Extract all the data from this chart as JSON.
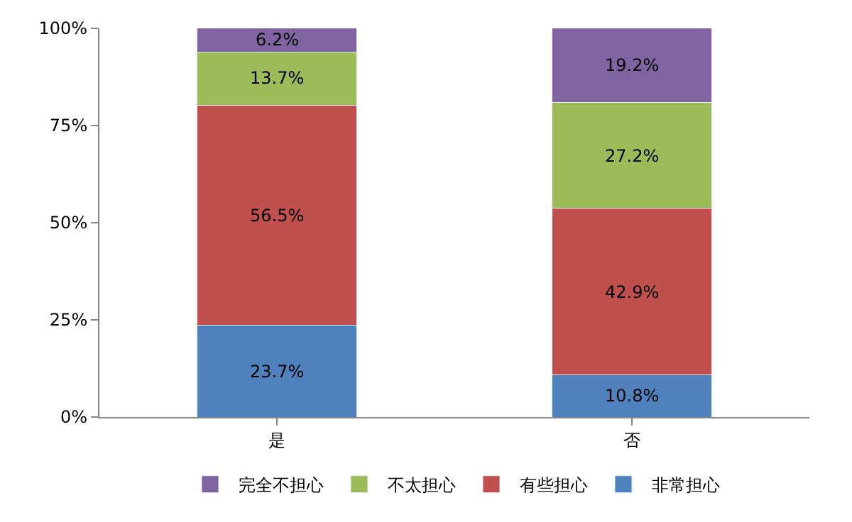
{
  "chart_data": {
    "type": "bar",
    "stacked": true,
    "categories": [
      "是",
      "否"
    ],
    "series": [
      {
        "name": "非常担心",
        "color": "#4f81bd",
        "values": [
          23.7,
          10.8
        ],
        "value_labels": [
          "23.7%",
          "10.8%"
        ]
      },
      {
        "name": "有些担心",
        "color": "#c0504d",
        "values": [
          56.5,
          42.9
        ],
        "value_labels": [
          "56.5%",
          "42.9%"
        ]
      },
      {
        "name": "不太担心",
        "color": "#9bbb59",
        "values": [
          13.7,
          27.2
        ],
        "value_labels": [
          "13.7%",
          "27.2%"
        ]
      },
      {
        "name": "完全不担心",
        "color": "#8064a2",
        "values": [
          6.2,
          19.2
        ],
        "value_labels": [
          "6.2%",
          "19.2%"
        ]
      }
    ],
    "ylim": [
      0,
      100
    ],
    "yticks": [
      {
        "value": 0,
        "label": "0%"
      },
      {
        "value": 25,
        "label": "25%"
      },
      {
        "value": 50,
        "label": "50%"
      },
      {
        "value": 75,
        "label": "75%"
      },
      {
        "value": 100,
        "label": "100%"
      }
    ],
    "grid": false,
    "legend": "bottom"
  }
}
